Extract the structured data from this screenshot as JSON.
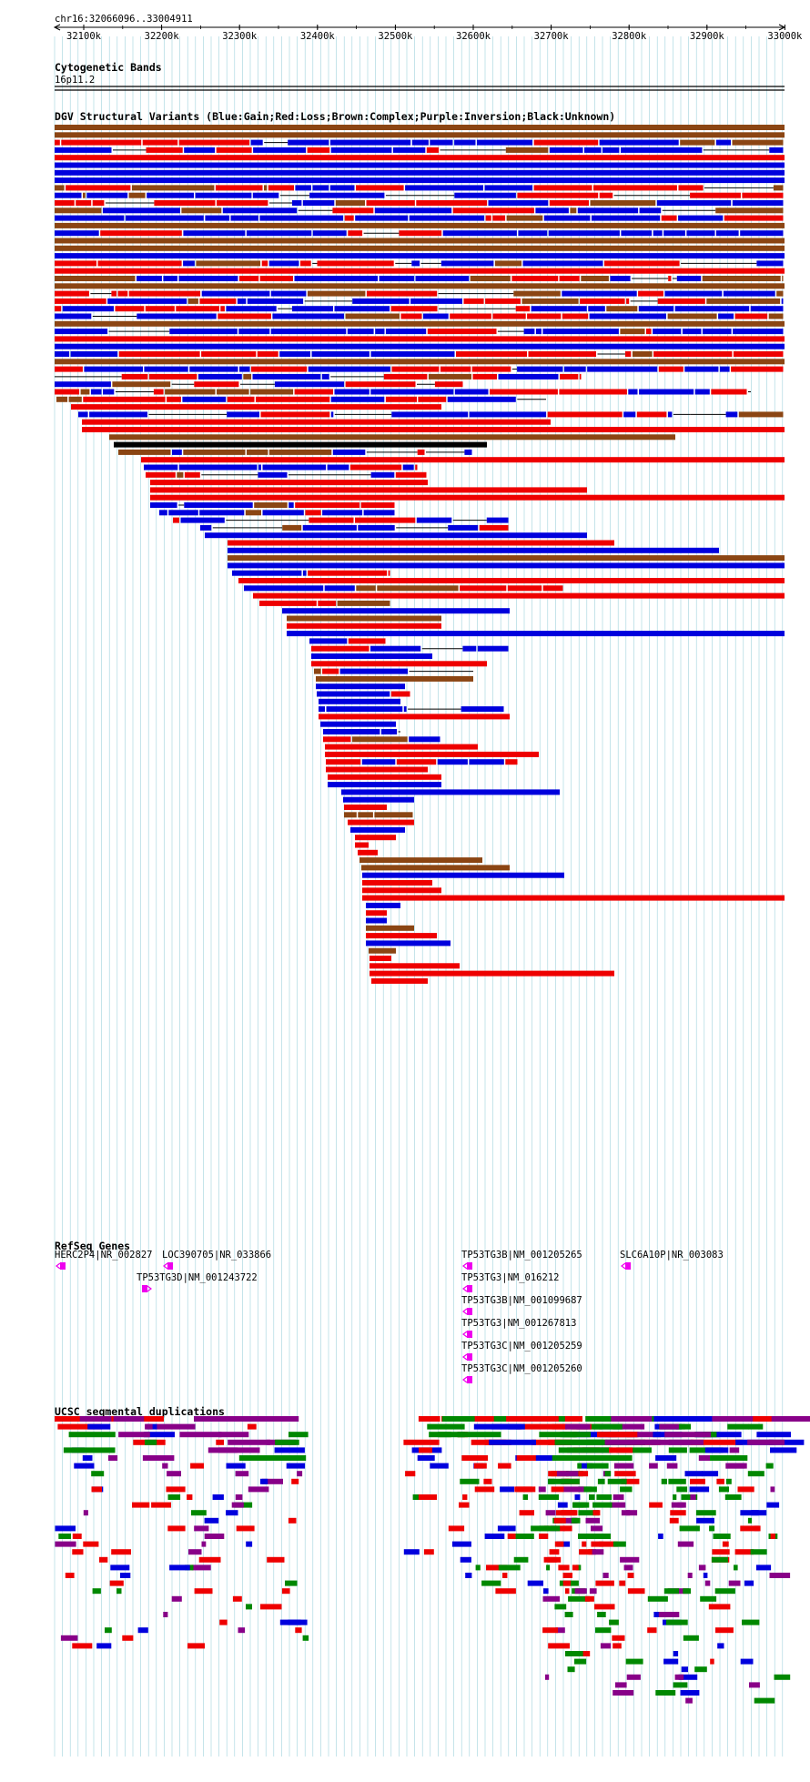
{
  "position_label": "chr16:32066096..33004911",
  "ruler": {
    "ticks": [
      "32100k",
      "32200k",
      "32300k",
      "32400k",
      "32500k",
      "32600k",
      "32700k",
      "32800k",
      "32900k",
      "33000k"
    ]
  },
  "tracks": {
    "cyto": {
      "title": "Cytogenetic Bands",
      "band": "16p11.2"
    },
    "dgv": {
      "title": "DGV Structural Variants (Blue:Gain;Red:Loss;Brown:Complex;Purple:Inversion;Black:Unknown)"
    },
    "refseq": {
      "title": "RefSeq Genes",
      "genes": [
        {
          "label": "HERC2P4|NR_002827",
          "strand": "-"
        },
        {
          "label": "LOC390705|NR_033866",
          "strand": "-"
        },
        {
          "label": "TP53TG3D|NM_001243722",
          "strand": "+"
        },
        {
          "label": "TP53TG3B|NM_001205265",
          "strand": "-"
        },
        {
          "label": "TP53TG3|NM_016212",
          "strand": "-"
        },
        {
          "label": "TP53TG3B|NM_001099687",
          "strand": "-"
        },
        {
          "label": "TP53TG3|NM_001267813",
          "strand": "-"
        },
        {
          "label": "TP53TG3C|NM_001205259",
          "strand": "-"
        },
        {
          "label": "TP53TG3C|NM_001205260",
          "strand": "-"
        },
        {
          "label": "SLC6A10P|NR_003083",
          "strand": "-"
        }
      ]
    },
    "segdup": {
      "title": "UCSC segmental duplications"
    }
  },
  "colors": {
    "gain": "#0000dd",
    "loss": "#ee0000",
    "complex": "#8b4513",
    "inversion": "#8b008b",
    "unknown": "#000000",
    "gene": "#ee00ee",
    "segdup_green": "#008800",
    "segdup_blue": "#0000dd",
    "segdup_purple": "#880088",
    "segdup_red": "#ee0000",
    "grid": "#9fd3dd"
  }
}
